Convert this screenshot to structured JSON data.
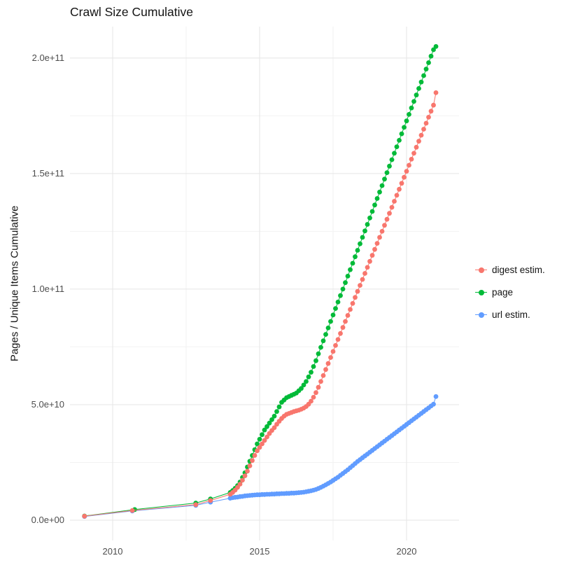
{
  "title": "Crawl Size Cumulative",
  "chart_data": {
    "type": "scatter",
    "title": "Crawl Size Cumulative",
    "xlabel": "",
    "ylabel": "Pages / Unique Items Cumulative",
    "grid": true,
    "legend_position": "right",
    "y_unit_multiplier": 10000000000.0,
    "x_axis": {
      "range": [
        2008.548,
        2021.786
      ],
      "major_ticks": [
        {
          "value": 2010,
          "label": "2010"
        },
        {
          "value": 2015,
          "label": "2015"
        },
        {
          "value": 2020,
          "label": "2020"
        }
      ],
      "minor_ticks": [
        2012.5,
        2017.5
      ]
    },
    "y_axis": {
      "range": [
        -0.88,
        21.36
      ],
      "major_ticks": [
        {
          "value": 0,
          "label": "0.0e+00"
        },
        {
          "value": 5,
          "label": "5.0e+10"
        },
        {
          "value": 10,
          "label": "1.0e+11"
        },
        {
          "value": 15,
          "label": "1.5e+11"
        },
        {
          "value": 20,
          "label": "2.0e+11"
        }
      ],
      "minor_ticks": [
        2.5,
        7.5,
        12.5,
        17.5
      ]
    },
    "series": [
      {
        "name": "digest estim.",
        "color": "#F8766D",
        "points": [
          [
            2009.04,
            0.17
          ],
          [
            2010.67,
            0.42
          ],
          [
            2012.83,
            0.67
          ],
          [
            2013.33,
            0.85
          ],
          [
            2014.0,
            1.12
          ],
          [
            2014.083,
            1.2
          ],
          [
            2014.167,
            1.3
          ],
          [
            2014.25,
            1.42
          ],
          [
            2014.333,
            1.56
          ],
          [
            2014.417,
            1.73
          ],
          [
            2014.5,
            1.92
          ],
          [
            2014.583,
            2.12
          ],
          [
            2014.667,
            2.35
          ],
          [
            2014.75,
            2.58
          ],
          [
            2014.833,
            2.8
          ],
          [
            2014.917,
            3.0
          ],
          [
            2015.0,
            3.15
          ],
          [
            2015.083,
            3.3
          ],
          [
            2015.167,
            3.45
          ],
          [
            2015.25,
            3.6
          ],
          [
            2015.333,
            3.75
          ],
          [
            2015.417,
            3.88
          ],
          [
            2015.5,
            4.0
          ],
          [
            2015.583,
            4.15
          ],
          [
            2015.667,
            4.28
          ],
          [
            2015.75,
            4.4
          ],
          [
            2015.833,
            4.5
          ],
          [
            2015.917,
            4.58
          ],
          [
            2016.0,
            4.62
          ],
          [
            2016.083,
            4.66
          ],
          [
            2016.167,
            4.7
          ],
          [
            2016.25,
            4.73
          ],
          [
            2016.333,
            4.76
          ],
          [
            2016.417,
            4.8
          ],
          [
            2016.5,
            4.85
          ],
          [
            2016.583,
            4.92
          ],
          [
            2016.667,
            5.02
          ],
          [
            2016.75,
            5.15
          ],
          [
            2016.833,
            5.32
          ],
          [
            2016.917,
            5.52
          ],
          [
            2017.0,
            5.75
          ],
          [
            2017.083,
            6.0
          ],
          [
            2017.167,
            6.26
          ],
          [
            2017.25,
            6.52
          ],
          [
            2017.333,
            6.78
          ],
          [
            2017.417,
            7.04
          ],
          [
            2017.5,
            7.3
          ],
          [
            2017.583,
            7.56
          ],
          [
            2017.667,
            7.82
          ],
          [
            2017.75,
            8.08
          ],
          [
            2017.833,
            8.34
          ],
          [
            2017.917,
            8.6
          ],
          [
            2018.0,
            8.86
          ],
          [
            2018.083,
            9.12
          ],
          [
            2018.167,
            9.38
          ],
          [
            2018.25,
            9.64
          ],
          [
            2018.333,
            9.9
          ],
          [
            2018.417,
            10.16
          ],
          [
            2018.5,
            10.42
          ],
          [
            2018.583,
            10.68
          ],
          [
            2018.667,
            10.94
          ],
          [
            2018.75,
            11.2
          ],
          [
            2018.833,
            11.46
          ],
          [
            2018.917,
            11.72
          ],
          [
            2019.0,
            11.98
          ],
          [
            2019.083,
            12.24
          ],
          [
            2019.167,
            12.5
          ],
          [
            2019.25,
            12.76
          ],
          [
            2019.333,
            13.02
          ],
          [
            2019.417,
            13.28
          ],
          [
            2019.5,
            13.54
          ],
          [
            2019.583,
            13.8
          ],
          [
            2019.667,
            14.06
          ],
          [
            2019.75,
            14.32
          ],
          [
            2019.833,
            14.58
          ],
          [
            2019.917,
            14.84
          ],
          [
            2020.0,
            15.1
          ],
          [
            2020.083,
            15.36
          ],
          [
            2020.167,
            15.62
          ],
          [
            2020.25,
            15.88
          ],
          [
            2020.333,
            16.14
          ],
          [
            2020.417,
            16.4
          ],
          [
            2020.5,
            16.66
          ],
          [
            2020.583,
            16.92
          ],
          [
            2020.667,
            17.18
          ],
          [
            2020.75,
            17.44
          ],
          [
            2020.833,
            17.7
          ],
          [
            2020.917,
            17.96
          ],
          [
            2021.0,
            18.5
          ]
        ]
      },
      {
        "name": "page",
        "color": "#00BA38",
        "points": [
          [
            2009.04,
            0.18
          ],
          [
            2010.75,
            0.46
          ],
          [
            2012.83,
            0.74
          ],
          [
            2013.33,
            0.92
          ],
          [
            2014.0,
            1.2
          ],
          [
            2014.083,
            1.28
          ],
          [
            2014.167,
            1.38
          ],
          [
            2014.25,
            1.5
          ],
          [
            2014.333,
            1.65
          ],
          [
            2014.417,
            1.85
          ],
          [
            2014.5,
            2.05
          ],
          [
            2014.583,
            2.3
          ],
          [
            2014.667,
            2.55
          ],
          [
            2014.75,
            2.8
          ],
          [
            2014.833,
            3.05
          ],
          [
            2014.917,
            3.3
          ],
          [
            2015.0,
            3.5
          ],
          [
            2015.083,
            3.7
          ],
          [
            2015.167,
            3.9
          ],
          [
            2015.25,
            4.05
          ],
          [
            2015.333,
            4.2
          ],
          [
            2015.417,
            4.35
          ],
          [
            2015.5,
            4.5
          ],
          [
            2015.583,
            4.7
          ],
          [
            2015.667,
            4.9
          ],
          [
            2015.75,
            5.1
          ],
          [
            2015.833,
            5.2
          ],
          [
            2015.917,
            5.3
          ],
          [
            2016.0,
            5.35
          ],
          [
            2016.083,
            5.4
          ],
          [
            2016.167,
            5.45
          ],
          [
            2016.25,
            5.5
          ],
          [
            2016.333,
            5.6
          ],
          [
            2016.417,
            5.7
          ],
          [
            2016.5,
            5.85
          ],
          [
            2016.583,
            6.0
          ],
          [
            2016.667,
            6.2
          ],
          [
            2016.75,
            6.4
          ],
          [
            2016.833,
            6.65
          ],
          [
            2016.917,
            6.9
          ],
          [
            2017.0,
            7.2
          ],
          [
            2017.083,
            7.48
          ],
          [
            2017.167,
            7.76
          ],
          [
            2017.25,
            8.04
          ],
          [
            2017.333,
            8.32
          ],
          [
            2017.417,
            8.6
          ],
          [
            2017.5,
            8.88
          ],
          [
            2017.583,
            9.16
          ],
          [
            2017.667,
            9.44
          ],
          [
            2017.75,
            9.72
          ],
          [
            2017.833,
            10.0
          ],
          [
            2017.917,
            10.28
          ],
          [
            2018.0,
            10.56
          ],
          [
            2018.083,
            10.84
          ],
          [
            2018.167,
            11.12
          ],
          [
            2018.25,
            11.4
          ],
          [
            2018.333,
            11.68
          ],
          [
            2018.417,
            11.96
          ],
          [
            2018.5,
            12.24
          ],
          [
            2018.583,
            12.52
          ],
          [
            2018.667,
            12.8
          ],
          [
            2018.75,
            13.08
          ],
          [
            2018.833,
            13.36
          ],
          [
            2018.917,
            13.64
          ],
          [
            2019.0,
            13.92
          ],
          [
            2019.083,
            14.2
          ],
          [
            2019.167,
            14.48
          ],
          [
            2019.25,
            14.76
          ],
          [
            2019.333,
            15.04
          ],
          [
            2019.417,
            15.32
          ],
          [
            2019.5,
            15.6
          ],
          [
            2019.583,
            15.88
          ],
          [
            2019.667,
            16.16
          ],
          [
            2019.75,
            16.44
          ],
          [
            2019.833,
            16.72
          ],
          [
            2019.917,
            17.0
          ],
          [
            2020.0,
            17.28
          ],
          [
            2020.083,
            17.56
          ],
          [
            2020.167,
            17.84
          ],
          [
            2020.25,
            18.12
          ],
          [
            2020.333,
            18.4
          ],
          [
            2020.417,
            18.68
          ],
          [
            2020.5,
            18.96
          ],
          [
            2020.583,
            19.24
          ],
          [
            2020.667,
            19.52
          ],
          [
            2020.75,
            19.8
          ],
          [
            2020.833,
            20.08
          ],
          [
            2020.917,
            20.36
          ],
          [
            2021.0,
            20.5
          ]
        ]
      },
      {
        "name": "url estim.",
        "color": "#619CFF",
        "points": [
          [
            2009.04,
            0.16
          ],
          [
            2010.67,
            0.4
          ],
          [
            2012.83,
            0.64
          ],
          [
            2013.33,
            0.78
          ],
          [
            2014.0,
            0.95
          ],
          [
            2014.083,
            0.97
          ],
          [
            2014.167,
            0.99
          ],
          [
            2014.25,
            1.0
          ],
          [
            2014.333,
            1.02
          ],
          [
            2014.417,
            1.03
          ],
          [
            2014.5,
            1.05
          ],
          [
            2014.583,
            1.06
          ],
          [
            2014.667,
            1.07
          ],
          [
            2014.75,
            1.08
          ],
          [
            2014.833,
            1.09
          ],
          [
            2014.917,
            1.1
          ],
          [
            2015.0,
            1.1
          ],
          [
            2015.083,
            1.11
          ],
          [
            2015.167,
            1.11
          ],
          [
            2015.25,
            1.12
          ],
          [
            2015.333,
            1.12
          ],
          [
            2015.417,
            1.13
          ],
          [
            2015.5,
            1.13
          ],
          [
            2015.583,
            1.14
          ],
          [
            2015.667,
            1.14
          ],
          [
            2015.75,
            1.15
          ],
          [
            2015.833,
            1.15
          ],
          [
            2015.917,
            1.16
          ],
          [
            2016.0,
            1.16
          ],
          [
            2016.083,
            1.17
          ],
          [
            2016.167,
            1.17
          ],
          [
            2016.25,
            1.18
          ],
          [
            2016.333,
            1.19
          ],
          [
            2016.417,
            1.2
          ],
          [
            2016.5,
            1.21
          ],
          [
            2016.583,
            1.23
          ],
          [
            2016.667,
            1.25
          ],
          [
            2016.75,
            1.27
          ],
          [
            2016.833,
            1.3
          ],
          [
            2016.917,
            1.33
          ],
          [
            2017.0,
            1.37
          ],
          [
            2017.083,
            1.42
          ],
          [
            2017.167,
            1.47
          ],
          [
            2017.25,
            1.53
          ],
          [
            2017.333,
            1.59
          ],
          [
            2017.417,
            1.65
          ],
          [
            2017.5,
            1.72
          ],
          [
            2017.583,
            1.79
          ],
          [
            2017.667,
            1.86
          ],
          [
            2017.75,
            1.94
          ],
          [
            2017.833,
            2.02
          ],
          [
            2017.917,
            2.1
          ],
          [
            2018.0,
            2.18
          ],
          [
            2018.083,
            2.27
          ],
          [
            2018.167,
            2.36
          ],
          [
            2018.25,
            2.45
          ],
          [
            2018.333,
            2.54
          ],
          [
            2018.417,
            2.62
          ],
          [
            2018.5,
            2.7
          ],
          [
            2018.583,
            2.78
          ],
          [
            2018.667,
            2.86
          ],
          [
            2018.75,
            2.94
          ],
          [
            2018.833,
            3.02
          ],
          [
            2018.917,
            3.1
          ],
          [
            2019.0,
            3.18
          ],
          [
            2019.083,
            3.26
          ],
          [
            2019.167,
            3.34
          ],
          [
            2019.25,
            3.42
          ],
          [
            2019.333,
            3.5
          ],
          [
            2019.417,
            3.58
          ],
          [
            2019.5,
            3.66
          ],
          [
            2019.583,
            3.74
          ],
          [
            2019.667,
            3.82
          ],
          [
            2019.75,
            3.9
          ],
          [
            2019.833,
            3.98
          ],
          [
            2019.917,
            4.06
          ],
          [
            2020.0,
            4.14
          ],
          [
            2020.083,
            4.22
          ],
          [
            2020.167,
            4.3
          ],
          [
            2020.25,
            4.38
          ],
          [
            2020.333,
            4.46
          ],
          [
            2020.417,
            4.54
          ],
          [
            2020.5,
            4.62
          ],
          [
            2020.583,
            4.7
          ],
          [
            2020.667,
            4.78
          ],
          [
            2020.75,
            4.86
          ],
          [
            2020.833,
            4.94
          ],
          [
            2020.917,
            5.02
          ],
          [
            2021.0,
            5.35
          ]
        ]
      }
    ],
    "style": {
      "major_grid_color": "#e5e5e5",
      "minor_grid_color": "#f2f2f2",
      "point_radius": 3.4,
      "line_width": 1
    }
  }
}
